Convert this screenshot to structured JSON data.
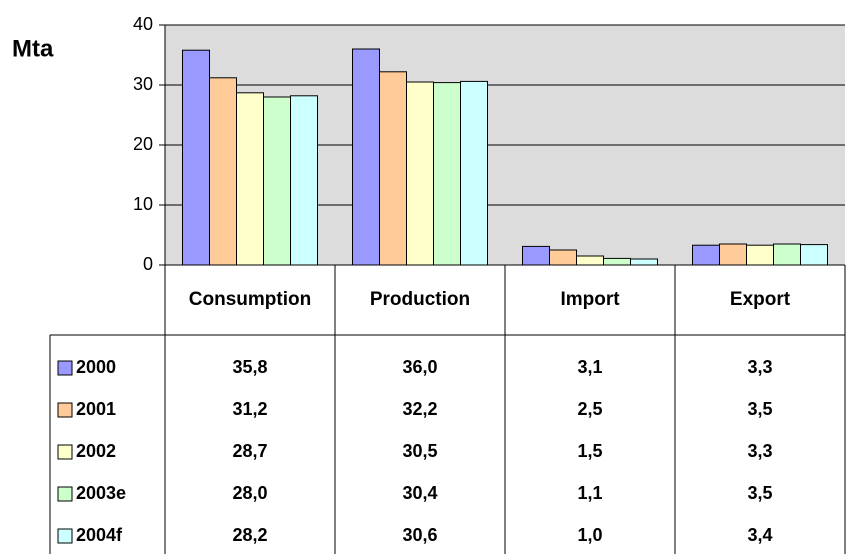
{
  "chart_data": {
    "type": "bar",
    "y_label": "Mta",
    "categories": [
      "Consumption",
      "Production",
      "Import",
      "Export"
    ],
    "series": [
      {
        "name": "2000",
        "color": "#9999ff",
        "values": [
          35.8,
          36.0,
          3.1,
          3.3
        ],
        "value_labels": [
          "35,8",
          "36,0",
          "3,1",
          "3,3"
        ]
      },
      {
        "name": "2001",
        "color": "#ffcc99",
        "values": [
          31.2,
          32.2,
          2.5,
          3.5
        ],
        "value_labels": [
          "31,2",
          "32,2",
          "2,5",
          "3,5"
        ]
      },
      {
        "name": "2002",
        "color": "#ffffcc",
        "values": [
          28.7,
          30.5,
          1.5,
          3.3
        ],
        "value_labels": [
          "28,7",
          "30,5",
          "1,5",
          "3,3"
        ]
      },
      {
        "name": "2003e",
        "color": "#ccffcc",
        "values": [
          28.0,
          30.4,
          1.1,
          3.5
        ],
        "value_labels": [
          "28,0",
          "30,4",
          "1,1",
          "3,5"
        ]
      },
      {
        "name": "2004f",
        "color": "#ccffff",
        "values": [
          28.2,
          30.6,
          1.0,
          3.4
        ],
        "value_labels": [
          "28,2",
          "30,6",
          "1,0",
          "3,4"
        ]
      }
    ],
    "ylim": [
      0,
      40
    ],
    "yticks": [
      0,
      10,
      20,
      30,
      40
    ],
    "grid": true,
    "plot_background": "#dcdcdc"
  }
}
